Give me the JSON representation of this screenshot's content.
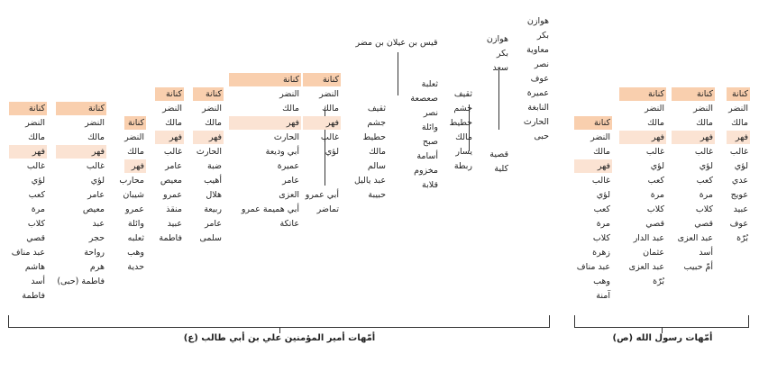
{
  "captions": {
    "ali": "أمّهات أمير المؤمنين علي بن أبي طالب (ع)",
    "prophet": "أمّهات رسول الله (ص)"
  },
  "top_label": "قيس بن عيلان بن مضر",
  "colors": {
    "kinana": "#f9cfae",
    "fihr": "#fbe3d3",
    "mother": "#d6e4bd"
  },
  "columns": [
    {
      "id": "c1",
      "cells": [
        {
          "t": "كنانة",
          "k": "kinana"
        },
        {
          "t": "النضر"
        },
        {
          "t": "مالك"
        },
        {
          "t": "فهر",
          "k": "fihr"
        },
        {
          "t": "غالب"
        },
        {
          "t": "لؤي"
        },
        {
          "t": "كعب"
        },
        {
          "t": "مرة"
        },
        {
          "t": "كلاب"
        },
        {
          "t": "قصي"
        },
        {
          "t": "عبد مناف"
        },
        {
          "t": "هاشم"
        },
        {
          "t": "أسد"
        },
        {
          "t": "فاطمة",
          "k": "mother"
        }
      ]
    },
    {
      "id": "c2",
      "cells": [
        {
          "t": "كنانة",
          "k": "kinana"
        },
        {
          "t": "النضر"
        },
        {
          "t": "مالك"
        },
        {
          "t": "فهر",
          "k": "fihr"
        },
        {
          "t": "غالب"
        },
        {
          "t": "لؤي"
        },
        {
          "t": "عامر"
        },
        {
          "t": "معيص"
        },
        {
          "t": "عبد"
        },
        {
          "t": "حجر"
        },
        {
          "t": "رواحة"
        },
        {
          "t": "هرم"
        },
        {
          "t": "فاطمة (حبى)",
          "k": "mother"
        }
      ]
    },
    {
      "id": "c3",
      "cells": [
        {
          "t": "كنانة",
          "k": "kinana"
        },
        {
          "t": "النضر"
        },
        {
          "t": "مالك"
        },
        {
          "t": "فهر",
          "k": "fihr"
        },
        {
          "t": "محارب"
        },
        {
          "t": "شيبان"
        },
        {
          "t": "عمرو"
        },
        {
          "t": "وائلة"
        },
        {
          "t": "ثعلبه"
        },
        {
          "t": "وهب"
        },
        {
          "t": "حدية",
          "k": "mother"
        }
      ]
    },
    {
      "id": "c4",
      "cells": [
        {
          "t": "كنانة",
          "k": "kinana"
        },
        {
          "t": "النضر"
        },
        {
          "t": "مالك"
        },
        {
          "t": "فهر",
          "k": "fihr"
        },
        {
          "t": "غالب"
        },
        {
          "t": "عامر"
        },
        {
          "t": "معيص"
        },
        {
          "t": "عمرو"
        },
        {
          "t": "منقذ"
        },
        {
          "t": "عبيد"
        },
        {
          "t": "فاطمة",
          "k": "mother"
        }
      ]
    },
    {
      "id": "c5",
      "cells": [
        {
          "t": "كنانة",
          "k": "kinana"
        },
        {
          "t": "النضر"
        },
        {
          "t": "مالك"
        },
        {
          "t": "فهر",
          "k": "fihr"
        },
        {
          "t": "الحارث"
        },
        {
          "t": "ضبة"
        },
        {
          "t": "أهيب"
        },
        {
          "t": "هلال"
        },
        {
          "t": "ربيعة"
        },
        {
          "t": "عامر"
        },
        {
          "t": "سلمى",
          "k": "mother"
        }
      ]
    },
    {
      "id": "c6",
      "cells": [
        {
          "t": "كنانة",
          "k": "kinana"
        },
        {
          "t": "النضر"
        },
        {
          "t": "مالك"
        },
        {
          "t": "فهر",
          "k": "fihr"
        },
        {
          "t": "الحارث"
        },
        {
          "t": "أبي وديعة"
        },
        {
          "t": "عميرة"
        },
        {
          "t": "عامر"
        },
        {
          "t": "العزى"
        },
        {
          "t": "أبي هميمة عمرو"
        },
        {
          "t": "عاتكة",
          "k": "mother"
        }
      ]
    },
    {
      "id": "c7",
      "cells": [
        {
          "t": "كنانة",
          "k": "kinana"
        },
        {
          "t": "النضر"
        },
        {
          "t": "مالك"
        },
        {
          "t": "فهر",
          "k": "fihr"
        },
        {
          "t": "غالب"
        },
        {
          "t": "لؤي"
        },
        {
          "t": ""
        },
        {
          "t": ""
        },
        {
          "t": "أبي عمرو"
        },
        {
          "t": "تماضر",
          "k": "mother"
        }
      ]
    },
    {
      "id": "c8",
      "cells": [
        {
          "t": "ثقيف"
        },
        {
          "t": "جشم"
        },
        {
          "t": "حطيط"
        },
        {
          "t": "مالك"
        },
        {
          "t": "سالم"
        },
        {
          "t": "عبد ياليل"
        },
        {
          "t": "حبيبة",
          "k": "mother"
        }
      ]
    },
    {
      "id": "c9",
      "cells": [
        {
          "t": "ثعلبة"
        },
        {
          "t": "صعصعة"
        },
        {
          "t": "نصر"
        },
        {
          "t": "وائلة"
        },
        {
          "t": "صبح"
        },
        {
          "t": "أسامة"
        },
        {
          "t": "مخزوم"
        },
        {
          "t": "قلابة",
          "k": "mother"
        }
      ]
    },
    {
      "id": "c10",
      "cells": [
        {
          "t": "ثقيف"
        },
        {
          "t": "جشم"
        },
        {
          "t": "حطيط"
        },
        {
          "t": "مالك"
        },
        {
          "t": "يسار"
        },
        {
          "t": "ربطة",
          "k": "mother"
        }
      ]
    },
    {
      "id": "c11",
      "cells": [
        {
          "t": "هوازن"
        },
        {
          "t": "بكر"
        },
        {
          "t": "سعد"
        },
        {
          "t": ""
        },
        {
          "t": ""
        },
        {
          "t": ""
        },
        {
          "t": ""
        },
        {
          "t": ""
        },
        {
          "t": "قصية"
        },
        {
          "t": "كلية",
          "k": "mother"
        }
      ]
    },
    {
      "id": "c12",
      "cells": [
        {
          "t": "هوازن"
        },
        {
          "t": "بكر"
        },
        {
          "t": "معاوية"
        },
        {
          "t": "نصر"
        },
        {
          "t": "عوف"
        },
        {
          "t": "عميرة"
        },
        {
          "t": "النابغة"
        },
        {
          "t": "الحارث"
        },
        {
          "t": "حبى",
          "k": "mother"
        }
      ]
    },
    {
      "id": "p1",
      "cells": [
        {
          "t": "كنانة",
          "k": "kinana"
        },
        {
          "t": "النضر"
        },
        {
          "t": "مالك"
        },
        {
          "t": "فهر",
          "k": "fihr"
        },
        {
          "t": "غالب"
        },
        {
          "t": "لؤي"
        },
        {
          "t": "كعب"
        },
        {
          "t": "مرة"
        },
        {
          "t": "كلاب"
        },
        {
          "t": "زهرة"
        },
        {
          "t": "عبد مناف"
        },
        {
          "t": "وهب"
        },
        {
          "t": "آمنة",
          "k": "mother"
        }
      ]
    },
    {
      "id": "p2",
      "cells": [
        {
          "t": "كنانة",
          "k": "kinana"
        },
        {
          "t": "النضر"
        },
        {
          "t": "مالك"
        },
        {
          "t": "فهر",
          "k": "fihr"
        },
        {
          "t": "غالب"
        },
        {
          "t": "لؤي"
        },
        {
          "t": "كعب"
        },
        {
          "t": "مرة"
        },
        {
          "t": "كلاب"
        },
        {
          "t": "قصي"
        },
        {
          "t": "عبد الدار"
        },
        {
          "t": "عثمان"
        },
        {
          "t": "عبد العزى"
        },
        {
          "t": "بُرّة",
          "k": "mother"
        }
      ]
    },
    {
      "id": "p3",
      "cells": [
        {
          "t": "كنانة",
          "k": "kinana"
        },
        {
          "t": "النضر"
        },
        {
          "t": "مالك"
        },
        {
          "t": "فهر",
          "k": "fihr"
        },
        {
          "t": "غالب"
        },
        {
          "t": "لؤي"
        },
        {
          "t": "كعب"
        },
        {
          "t": "مرة"
        },
        {
          "t": "كلاب"
        },
        {
          "t": "قصي"
        },
        {
          "t": "عبد العزى"
        },
        {
          "t": "أسد"
        },
        {
          "t": "أمّ حبيب",
          "k": "mother"
        }
      ]
    },
    {
      "id": "p4",
      "cells": [
        {
          "t": "كنانة",
          "k": "kinana"
        },
        {
          "t": "النضر"
        },
        {
          "t": "مالك"
        },
        {
          "t": "فهر",
          "k": "fihr"
        },
        {
          "t": "غالب"
        },
        {
          "t": "لؤي"
        },
        {
          "t": "عدي"
        },
        {
          "t": "عويج"
        },
        {
          "t": "عبيد"
        },
        {
          "t": "عوف"
        },
        {
          "t": "بُرّة",
          "k": "mother"
        }
      ]
    }
  ]
}
